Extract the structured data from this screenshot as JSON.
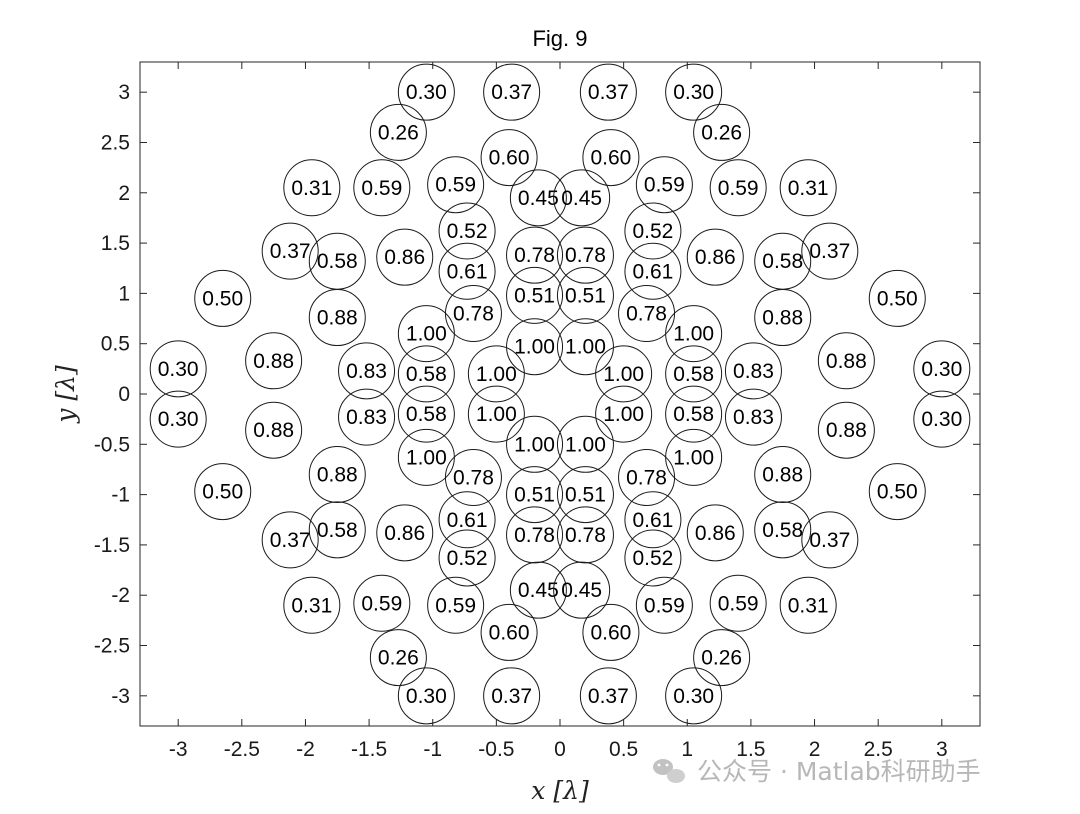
{
  "chart_data": {
    "type": "scatter",
    "title": "Fig. 9",
    "xlabel": "x [λ]",
    "ylabel": "y [λ]",
    "xlim": [
      -3.3,
      3.3
    ],
    "ylim": [
      -3.3,
      3.3
    ],
    "xticks": [
      -3,
      -2.5,
      -2,
      -1.5,
      -1,
      -0.5,
      0,
      0.5,
      1,
      1.5,
      2,
      2.5,
      3
    ],
    "yticks": [
      3,
      2.5,
      2,
      1.5,
      1,
      0.5,
      0,
      -0.5,
      -1,
      -1.5,
      -2,
      -2.5,
      -3
    ],
    "grid": false,
    "marker_radius": 0.22,
    "points": [
      {
        "x": -1.05,
        "y": 3.0,
        "value": "0.30"
      },
      {
        "x": -0.38,
        "y": 3.0,
        "value": "0.37"
      },
      {
        "x": 0.38,
        "y": 3.0,
        "value": "0.37"
      },
      {
        "x": 1.05,
        "y": 3.0,
        "value": "0.30"
      },
      {
        "x": -1.27,
        "y": 2.6,
        "value": "0.26"
      },
      {
        "x": 1.27,
        "y": 2.6,
        "value": "0.26"
      },
      {
        "x": -0.4,
        "y": 2.35,
        "value": "0.60"
      },
      {
        "x": 0.4,
        "y": 2.35,
        "value": "0.60"
      },
      {
        "x": -1.95,
        "y": 2.05,
        "value": "0.31"
      },
      {
        "x": -1.4,
        "y": 2.05,
        "value": "0.59"
      },
      {
        "x": -0.82,
        "y": 2.08,
        "value": "0.59"
      },
      {
        "x": -0.17,
        "y": 1.95,
        "value": "0.45"
      },
      {
        "x": 0.17,
        "y": 1.95,
        "value": "0.45"
      },
      {
        "x": 0.82,
        "y": 2.08,
        "value": "0.59"
      },
      {
        "x": 1.4,
        "y": 2.05,
        "value": "0.59"
      },
      {
        "x": 1.95,
        "y": 2.05,
        "value": "0.31"
      },
      {
        "x": -0.73,
        "y": 1.62,
        "value": "0.52"
      },
      {
        "x": 0.73,
        "y": 1.62,
        "value": "0.52"
      },
      {
        "x": -2.12,
        "y": 1.42,
        "value": "0.37"
      },
      {
        "x": -1.75,
        "y": 1.32,
        "value": "0.58"
      },
      {
        "x": -1.22,
        "y": 1.36,
        "value": "0.86"
      },
      {
        "x": -0.73,
        "y": 1.22,
        "value": "0.61"
      },
      {
        "x": -0.2,
        "y": 1.38,
        "value": "0.78"
      },
      {
        "x": 0.2,
        "y": 1.38,
        "value": "0.78"
      },
      {
        "x": 0.73,
        "y": 1.22,
        "value": "0.61"
      },
      {
        "x": 1.22,
        "y": 1.36,
        "value": "0.86"
      },
      {
        "x": 1.75,
        "y": 1.32,
        "value": "0.58"
      },
      {
        "x": 2.12,
        "y": 1.42,
        "value": "0.37"
      },
      {
        "x": -2.65,
        "y": 0.95,
        "value": "0.50"
      },
      {
        "x": -0.2,
        "y": 0.98,
        "value": "0.51"
      },
      {
        "x": 0.2,
        "y": 0.98,
        "value": "0.51"
      },
      {
        "x": 2.65,
        "y": 0.95,
        "value": "0.50"
      },
      {
        "x": -1.75,
        "y": 0.76,
        "value": "0.88"
      },
      {
        "x": -0.68,
        "y": 0.8,
        "value": "0.78"
      },
      {
        "x": 0.68,
        "y": 0.8,
        "value": "0.78"
      },
      {
        "x": 1.75,
        "y": 0.76,
        "value": "0.88"
      },
      {
        "x": -1.05,
        "y": 0.6,
        "value": "1.00"
      },
      {
        "x": -0.2,
        "y": 0.47,
        "value": "1.00"
      },
      {
        "x": 0.2,
        "y": 0.47,
        "value": "1.00"
      },
      {
        "x": 1.05,
        "y": 0.6,
        "value": "1.00"
      },
      {
        "x": -2.25,
        "y": 0.33,
        "value": "0.88"
      },
      {
        "x": 2.25,
        "y": 0.33,
        "value": "0.88"
      },
      {
        "x": -3.0,
        "y": 0.25,
        "value": "0.30"
      },
      {
        "x": -1.52,
        "y": 0.23,
        "value": "0.83"
      },
      {
        "x": -1.05,
        "y": 0.2,
        "value": "0.58"
      },
      {
        "x": -0.5,
        "y": 0.2,
        "value": "1.00"
      },
      {
        "x": 0.5,
        "y": 0.2,
        "value": "1.00"
      },
      {
        "x": 1.05,
        "y": 0.2,
        "value": "0.58"
      },
      {
        "x": 1.52,
        "y": 0.23,
        "value": "0.83"
      },
      {
        "x": 3.0,
        "y": 0.25,
        "value": "0.30"
      },
      {
        "x": -3.0,
        "y": -0.25,
        "value": "0.30"
      },
      {
        "x": -1.52,
        "y": -0.23,
        "value": "0.83"
      },
      {
        "x": -1.05,
        "y": -0.2,
        "value": "0.58"
      },
      {
        "x": -0.5,
        "y": -0.2,
        "value": "1.00"
      },
      {
        "x": 0.5,
        "y": -0.2,
        "value": "1.00"
      },
      {
        "x": 1.05,
        "y": -0.2,
        "value": "0.58"
      },
      {
        "x": 1.52,
        "y": -0.23,
        "value": "0.83"
      },
      {
        "x": 3.0,
        "y": -0.25,
        "value": "0.30"
      },
      {
        "x": -2.25,
        "y": -0.36,
        "value": "0.88"
      },
      {
        "x": 2.25,
        "y": -0.36,
        "value": "0.88"
      },
      {
        "x": -0.2,
        "y": -0.5,
        "value": "1.00"
      },
      {
        "x": 0.2,
        "y": -0.5,
        "value": "1.00"
      },
      {
        "x": -1.05,
        "y": -0.63,
        "value": "1.00"
      },
      {
        "x": 1.05,
        "y": -0.63,
        "value": "1.00"
      },
      {
        "x": -1.75,
        "y": -0.8,
        "value": "0.88"
      },
      {
        "x": -0.68,
        "y": -0.83,
        "value": "0.78"
      },
      {
        "x": 0.68,
        "y": -0.83,
        "value": "0.78"
      },
      {
        "x": 1.75,
        "y": -0.8,
        "value": "0.88"
      },
      {
        "x": -2.65,
        "y": -0.97,
        "value": "0.50"
      },
      {
        "x": -0.2,
        "y": -1.0,
        "value": "0.51"
      },
      {
        "x": 0.2,
        "y": -1.0,
        "value": "0.51"
      },
      {
        "x": 2.65,
        "y": -0.97,
        "value": "0.50"
      },
      {
        "x": -0.73,
        "y": -1.25,
        "value": "0.61"
      },
      {
        "x": 0.73,
        "y": -1.25,
        "value": "0.61"
      },
      {
        "x": -1.75,
        "y": -1.35,
        "value": "0.58"
      },
      {
        "x": -1.22,
        "y": -1.38,
        "value": "0.86"
      },
      {
        "x": -0.2,
        "y": -1.4,
        "value": "0.78"
      },
      {
        "x": 0.2,
        "y": -1.4,
        "value": "0.78"
      },
      {
        "x": 1.22,
        "y": -1.38,
        "value": "0.86"
      },
      {
        "x": 1.75,
        "y": -1.35,
        "value": "0.58"
      },
      {
        "x": -2.12,
        "y": -1.45,
        "value": "0.37"
      },
      {
        "x": 2.12,
        "y": -1.45,
        "value": "0.37"
      },
      {
        "x": -0.73,
        "y": -1.63,
        "value": "0.52"
      },
      {
        "x": 0.73,
        "y": -1.63,
        "value": "0.52"
      },
      {
        "x": -0.17,
        "y": -1.95,
        "value": "0.45"
      },
      {
        "x": 0.17,
        "y": -1.95,
        "value": "0.45"
      },
      {
        "x": -1.4,
        "y": -2.08,
        "value": "0.59"
      },
      {
        "x": -1.95,
        "y": -2.1,
        "value": "0.31"
      },
      {
        "x": -0.82,
        "y": -2.1,
        "value": "0.59"
      },
      {
        "x": 0.82,
        "y": -2.1,
        "value": "0.59"
      },
      {
        "x": 1.4,
        "y": -2.08,
        "value": "0.59"
      },
      {
        "x": 1.95,
        "y": -2.1,
        "value": "0.31"
      },
      {
        "x": -0.4,
        "y": -2.37,
        "value": "0.60"
      },
      {
        "x": 0.4,
        "y": -2.37,
        "value": "0.60"
      },
      {
        "x": -1.27,
        "y": -2.62,
        "value": "0.26"
      },
      {
        "x": 1.27,
        "y": -2.62,
        "value": "0.26"
      },
      {
        "x": -1.05,
        "y": -3.0,
        "value": "0.30"
      },
      {
        "x": -0.38,
        "y": -3.0,
        "value": "0.37"
      },
      {
        "x": 0.38,
        "y": -3.0,
        "value": "0.37"
      },
      {
        "x": 1.05,
        "y": -3.0,
        "value": "0.30"
      }
    ]
  },
  "watermark": {
    "icon": "wechat-icon",
    "text": "公众号 · Matlab科研助手"
  }
}
